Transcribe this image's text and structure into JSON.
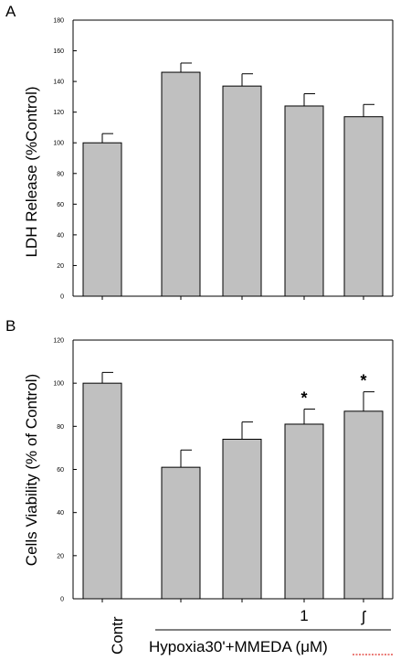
{
  "chart_data": [
    {
      "type": "bar",
      "panel": "A",
      "ylabel": "LDH Release (%Control)",
      "ylim": [
        0,
        180
      ],
      "yticks": [
        0,
        20,
        40,
        60,
        80,
        100,
        120,
        140,
        160,
        180
      ],
      "values": [
        100,
        146,
        137,
        124,
        117
      ],
      "errors": [
        6,
        6,
        8,
        8,
        8
      ],
      "annotations": [
        "",
        "",
        "",
        "",
        ""
      ],
      "bar_color": "#c0c0c0"
    },
    {
      "type": "bar",
      "panel": "B",
      "ylabel": "Cells Viability (%  of Control)",
      "ylim": [
        0,
        120
      ],
      "yticks": [
        0,
        20,
        40,
        60,
        80,
        100,
        120
      ],
      "values": [
        100,
        61,
        74,
        81,
        87
      ],
      "errors": [
        5,
        8,
        8,
        7,
        9
      ],
      "annotations": [
        "",
        "",
        "",
        "*",
        "*"
      ],
      "bar_color": "#c0c0c0"
    }
  ],
  "x_axis": {
    "control_label": "Contr",
    "dose_labels": [
      "",
      "",
      "1",
      "ʃ"
    ],
    "group_label": "Hypoxia30'+MMEDA (μM)"
  }
}
